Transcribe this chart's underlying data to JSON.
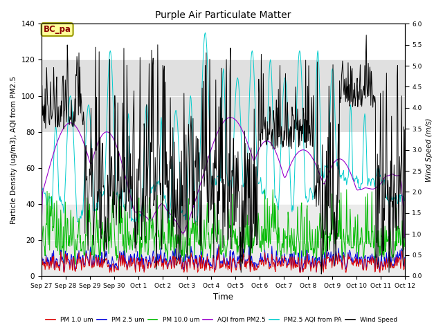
{
  "title": "Purple Air Particulate Matter",
  "xlabel": "Time",
  "ylabel_left": "Particle Density (ug/m3), AQI from PM2.5",
  "ylabel_right": "Wind Speed (m/s)",
  "ylim_left": [
    0,
    140
  ],
  "ylim_right": [
    0,
    6.0
  ],
  "annotation_text": "BC_pa",
  "annotation_color": "#8B0000",
  "annotation_bg": "#FFFF99",
  "annotation_border": "#999900",
  "x_tick_labels": [
    "Sep 27",
    "Sep 28",
    "Sep 29",
    "Sep 30",
    "Oct 1",
    "Oct 2",
    "Oct 3",
    "Oct 4",
    "Oct 5",
    "Oct 6",
    "Oct 7",
    "Oct 8",
    "Oct 9",
    "Oct 10",
    "Oct 11",
    "Oct 12"
  ],
  "shaded_bands": [
    {
      "ymin": 0,
      "ymax": 40,
      "color": "#ebebeb"
    },
    {
      "ymin": 80,
      "ymax": 120,
      "color": "#e0e0e0"
    }
  ],
  "legend_entries": [
    {
      "label": "PM 1.0 um",
      "color": "#dd0000",
      "lw": 1.2
    },
    {
      "label": "PM 2.5 um",
      "color": "#0000dd",
      "lw": 1.2
    },
    {
      "label": "PM 10.0 um",
      "color": "#00bb00",
      "lw": 1.2
    },
    {
      "label": "AQI from PM2.5",
      "color": "#9900cc",
      "lw": 1.2
    },
    {
      "label": "PM2.5 AQI from PA",
      "color": "#00cccc",
      "lw": 1.2
    },
    {
      "label": "Wind Speed",
      "color": "#000000",
      "lw": 1.2
    }
  ],
  "n_days": 15,
  "pts_per_day": 48,
  "seed": 7
}
